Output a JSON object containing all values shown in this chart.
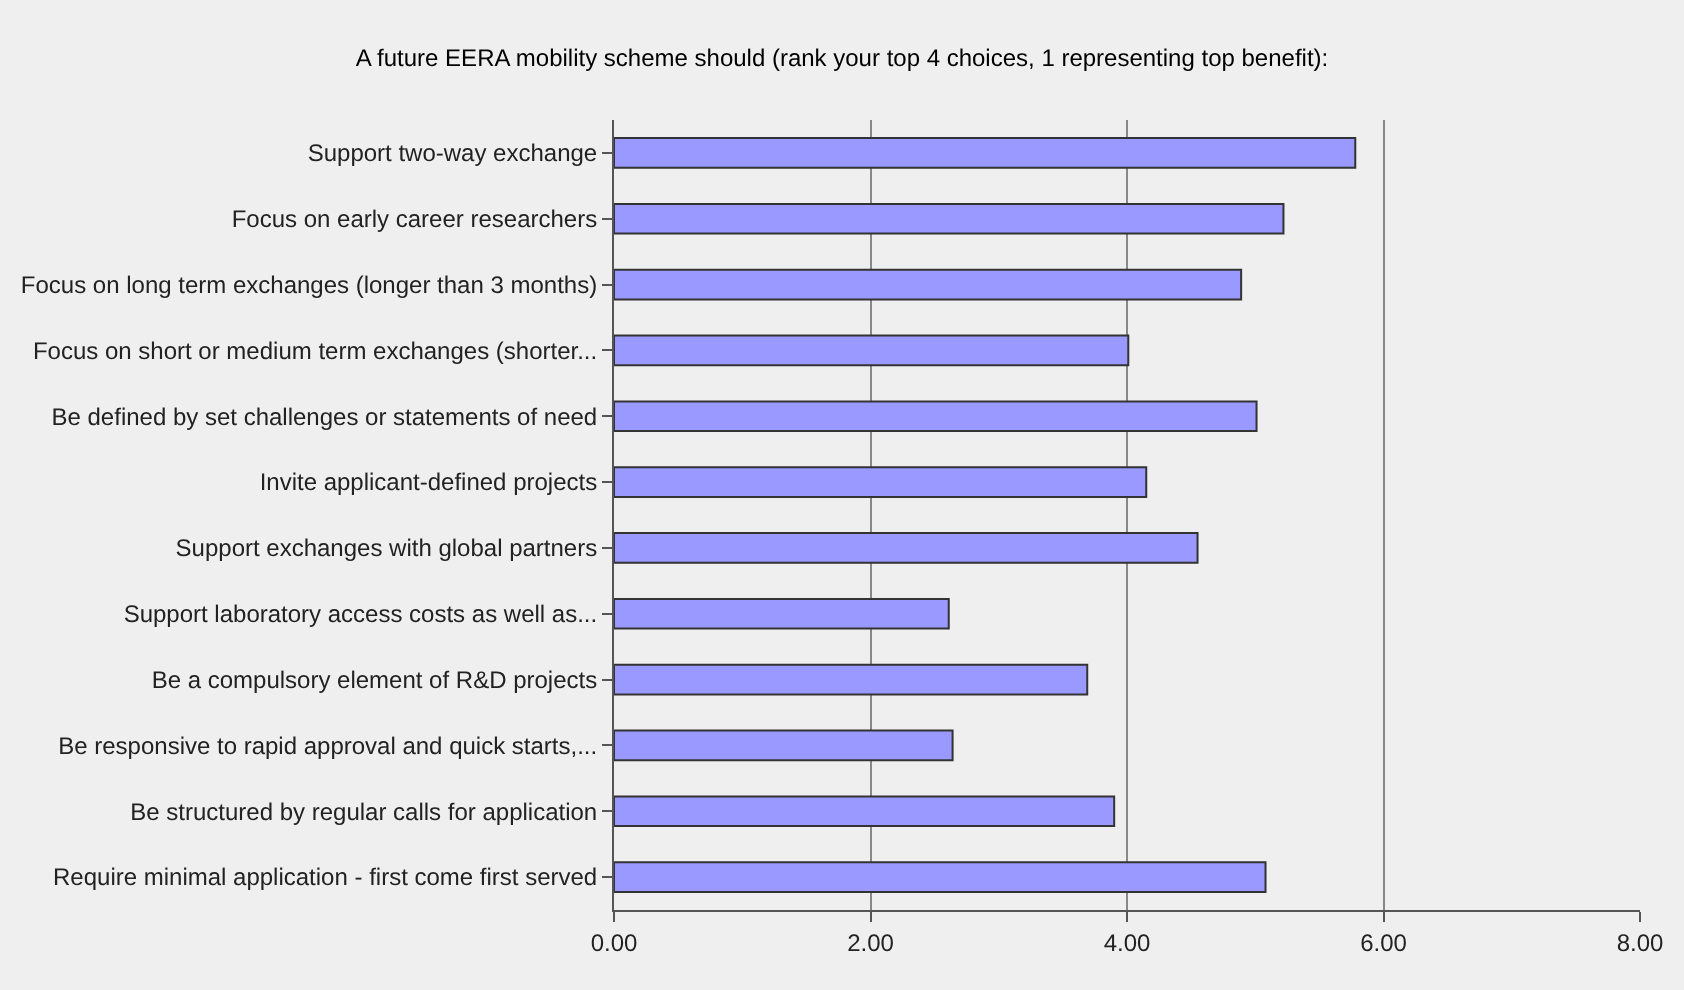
{
  "chart_data": {
    "type": "bar",
    "orientation": "horizontal",
    "title": "A future EERA mobility scheme should (rank your top 4 choices, 1 representing top benefit):",
    "categories": [
      "Support two-way exchange",
      "Focus on early career researchers",
      "Focus on long term exchanges (longer than 3 months)",
      "Focus on short or medium term exchanges (shorter...",
      "Be defined by set challenges or statements of need",
      "Invite applicant-defined projects",
      "Support exchanges with global partners",
      "Support laboratory access costs as well as...",
      "Be a compulsory element of R&D projects",
      "Be responsive to rapid approval and quick starts,...",
      "Be structured by regular calls for application",
      "Require minimal application - first come first served"
    ],
    "values": [
      5.78,
      5.22,
      4.89,
      4.01,
      5.01,
      4.15,
      4.55,
      2.61,
      3.69,
      2.64,
      3.9,
      5.08
    ],
    "color": "#9999ff",
    "xlim": [
      0,
      8
    ],
    "xticks": [
      {
        "value": 0,
        "label": "0.00"
      },
      {
        "value": 2,
        "label": "2.00"
      },
      {
        "value": 4,
        "label": "4.00"
      },
      {
        "value": 6,
        "label": "6.00"
      },
      {
        "value": 8,
        "label": "8.00"
      }
    ],
    "grid": "x",
    "legend": false
  }
}
